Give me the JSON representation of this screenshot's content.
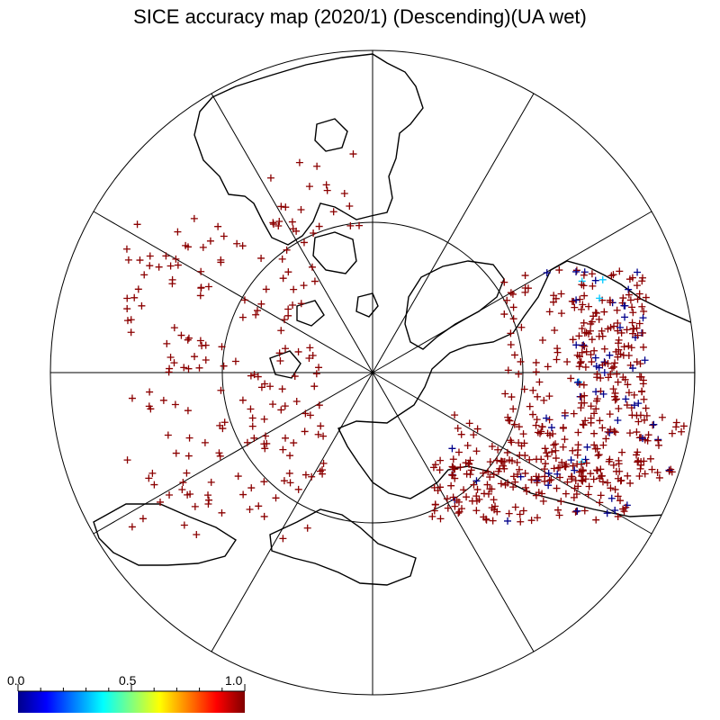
{
  "title": "SICE accuracy map (2020/1) (Descending)(UA wet)",
  "colorbar": {
    "ticks": [
      "0.0",
      "0.5",
      "1.0"
    ],
    "colors": [
      "#00008b",
      "#0000ff",
      "#0080ff",
      "#00ffff",
      "#80ff80",
      "#ffff00",
      "#ff8000",
      "#ff0000",
      "#800000"
    ]
  },
  "map": {
    "projection": "north-polar-stereographic",
    "meridian_step_deg": 30,
    "latitude_circles": 2,
    "coastline_color": "#000000",
    "marker_symbol": "+",
    "marker_colors": {
      "high": "#8b0000",
      "low": "#00008b",
      "mid": "#00c8ff"
    }
  }
}
